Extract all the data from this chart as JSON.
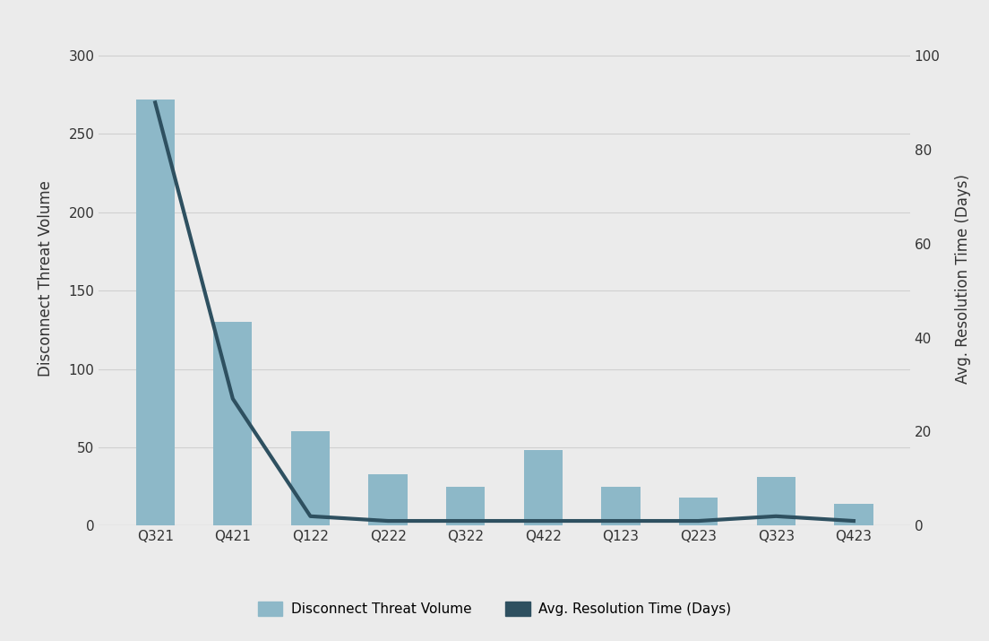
{
  "categories": [
    "Q321",
    "Q421",
    "Q122",
    "Q222",
    "Q322",
    "Q422",
    "Q123",
    "Q223",
    "Q323",
    "Q423"
  ],
  "bar_values": [
    272,
    130,
    60,
    33,
    25,
    48,
    25,
    18,
    31,
    14
  ],
  "line_values": [
    90,
    27,
    2,
    1,
    1,
    1,
    1,
    1,
    2,
    1
  ],
  "bar_color": "#8db8c8",
  "line_color": "#2e5060",
  "bar_label": "Disconnect Threat Volume",
  "line_label": "Avg. Resolution Time (Days)",
  "ylabel_left": "Disconnect Threat Volume",
  "ylabel_right": "Avg. Resolution Time (Days)",
  "ylim_left": [
    0,
    315
  ],
  "ylim_right": [
    0,
    105
  ],
  "yticks_left": [
    0,
    50,
    100,
    150,
    200,
    250,
    300
  ],
  "yticks_right": [
    0,
    20,
    40,
    60,
    80,
    100
  ],
  "background_color": "#ebebeb",
  "plot_bg_color": "#ebebeb",
  "grid_color": "#d0d0d0",
  "font_color": "#333333",
  "axis_label_fontsize": 12,
  "tick_fontsize": 11,
  "legend_fontsize": 11,
  "line_width": 3.0,
  "bar_width": 0.5
}
